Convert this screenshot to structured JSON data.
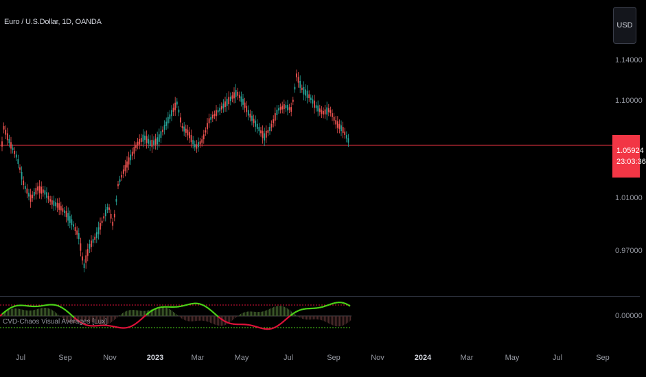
{
  "symbol": {
    "title": "Euro / U.S.Dollar, 1D, OANDA"
  },
  "currency": {
    "label": "USD"
  },
  "price_axis": {
    "labels": [
      "1.14000",
      "1.10000",
      "1.01000",
      "0.97000"
    ],
    "current_price": "1.05924",
    "countdown": "23:03:36",
    "indicator_zero": "0.00000"
  },
  "indicator": {
    "name": "CVD-Chaos Visual Averages [Lux]"
  },
  "time_axis": {
    "labels": [
      "Jul",
      "Sep",
      "Nov",
      "2023",
      "Mar",
      "May",
      "Jul",
      "Sep",
      "Nov",
      "2024",
      "Mar",
      "May",
      "Jul",
      "Sep"
    ]
  },
  "colors": {
    "up": "#26a69a",
    "down": "#ef5350",
    "price_line": "#f23645",
    "indicator_green": "#4cd417",
    "indicator_red": "#e0123a"
  }
}
